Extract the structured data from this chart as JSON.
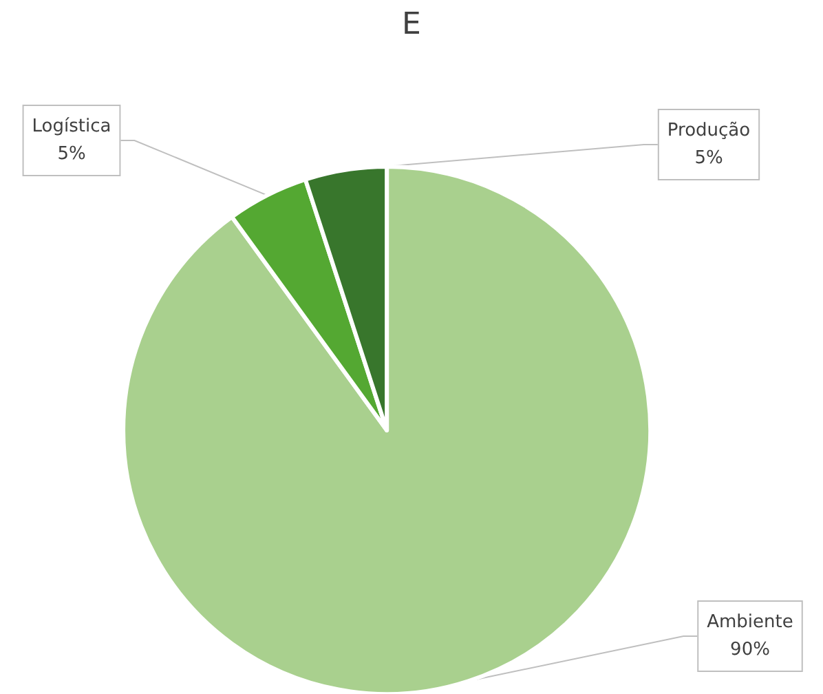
{
  "chart_data": {
    "type": "pie",
    "title": "E",
    "categories": [
      "Ambiente",
      "Logística",
      "Produção"
    ],
    "values": [
      90,
      5,
      5
    ],
    "colors": [
      "#a9d08e",
      "#54a832",
      "#38762c"
    ],
    "value_labels": [
      "90%",
      "5%",
      "5%"
    ]
  }
}
